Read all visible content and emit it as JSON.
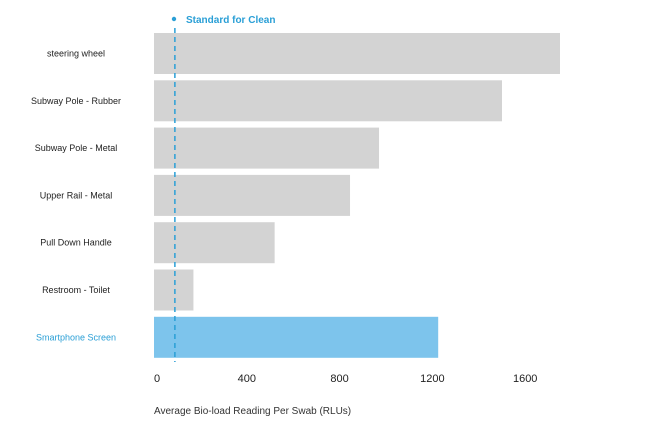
{
  "colors": {
    "bar": "#d3d3d3",
    "highlight_bar": "#7dc4ec",
    "highlight_label": "#2a9fd6",
    "reference": "#2a9fd6"
  },
  "chart_data": {
    "type": "bar",
    "orientation": "horizontal",
    "categories": [
      "steering wheel",
      "Subway Pole - Rubber",
      "Subway Pole - Metal",
      "Upper Rail - Metal",
      "Pull Down Handle",
      "Restroom - Toilet",
      "Smartphone Screen"
    ],
    "values": [
      1750,
      1500,
      970,
      845,
      520,
      170,
      1225
    ],
    "highlight_index": 6,
    "xlabel": "Average Bio-load Reading Per Swab (RLUs)",
    "ylabel": "",
    "xlim": [
      0,
      1750
    ],
    "xticks": [
      0,
      400,
      800,
      1200,
      1600
    ],
    "xtick_labels": [
      "0",
      "400",
      "800",
      "1200",
      "1600"
    ],
    "reference_line": {
      "value": 90,
      "label": "Standard for Clean"
    },
    "grid": false,
    "legend": "top-left"
  }
}
